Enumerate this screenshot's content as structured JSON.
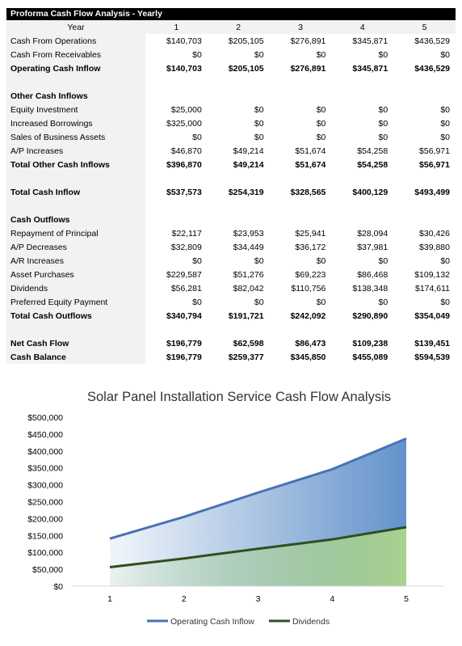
{
  "table": {
    "title": "Proforma Cash Flow Analysis - Yearly",
    "header": {
      "label": "Year",
      "years": [
        "1",
        "2",
        "3",
        "4",
        "5"
      ]
    },
    "rows": [
      {
        "label": "Cash From Operations",
        "values": [
          "$140,703",
          "$205,105",
          "$276,891",
          "$345,871",
          "$436,529"
        ],
        "bold": false
      },
      {
        "label": "Cash From Receivables",
        "values": [
          "$0",
          "$0",
          "$0",
          "$0",
          "$0"
        ],
        "bold": false
      },
      {
        "label": "Operating Cash Inflow",
        "values": [
          "$140,703",
          "$205,105",
          "$276,891",
          "$345,871",
          "$436,529"
        ],
        "bold": true
      },
      {
        "label": "",
        "values": [],
        "bold": false
      },
      {
        "label": "Other Cash Inflows",
        "values": [],
        "bold": true
      },
      {
        "label": "Equity Investment",
        "values": [
          "$25,000",
          "$0",
          "$0",
          "$0",
          "$0"
        ],
        "bold": false
      },
      {
        "label": "Increased Borrowings",
        "values": [
          "$325,000",
          "$0",
          "$0",
          "$0",
          "$0"
        ],
        "bold": false
      },
      {
        "label": "Sales of Business Assets",
        "values": [
          "$0",
          "$0",
          "$0",
          "$0",
          "$0"
        ],
        "bold": false
      },
      {
        "label": "A/P Increases",
        "values": [
          "$46,870",
          "$49,214",
          "$51,674",
          "$54,258",
          "$56,971"
        ],
        "bold": false
      },
      {
        "label": "Total Other Cash Inflows",
        "values": [
          "$396,870",
          "$49,214",
          "$51,674",
          "$54,258",
          "$56,971"
        ],
        "bold": true
      },
      {
        "label": "",
        "values": [],
        "bold": false
      },
      {
        "label": "Total Cash Inflow",
        "values": [
          "$537,573",
          "$254,319",
          "$328,565",
          "$400,129",
          "$493,499"
        ],
        "bold": true
      },
      {
        "label": "",
        "values": [],
        "bold": false
      },
      {
        "label": "Cash Outflows",
        "values": [],
        "bold": true
      },
      {
        "label": "Repayment of Principal",
        "values": [
          "$22,117",
          "$23,953",
          "$25,941",
          "$28,094",
          "$30,426"
        ],
        "bold": false
      },
      {
        "label": "A/P Decreases",
        "values": [
          "$32,809",
          "$34,449",
          "$36,172",
          "$37,981",
          "$39,880"
        ],
        "bold": false
      },
      {
        "label": "A/R Increases",
        "values": [
          "$0",
          "$0",
          "$0",
          "$0",
          "$0"
        ],
        "bold": false
      },
      {
        "label": "Asset Purchases",
        "values": [
          "$229,587",
          "$51,276",
          "$69,223",
          "$86,468",
          "$109,132"
        ],
        "bold": false
      },
      {
        "label": "Dividends",
        "values": [
          "$56,281",
          "$82,042",
          "$110,756",
          "$138,348",
          "$174,611"
        ],
        "bold": false
      },
      {
        "label": "Preferred Equity Payment",
        "values": [
          "$0",
          "$0",
          "$0",
          "$0",
          "$0"
        ],
        "bold": false
      },
      {
        "label": "Total Cash Outflows",
        "values": [
          "$340,794",
          "$191,721",
          "$242,092",
          "$290,890",
          "$354,049"
        ],
        "bold": true
      },
      {
        "label": "",
        "values": [],
        "bold": false
      },
      {
        "label": "Net Cash Flow",
        "values": [
          "$196,779",
          "$62,598",
          "$86,473",
          "$109,238",
          "$139,451"
        ],
        "bold": true
      },
      {
        "label": "Cash Balance",
        "values": [
          "$196,779",
          "$259,377",
          "$345,850",
          "$455,089",
          "$594,539"
        ],
        "bold": true
      }
    ]
  },
  "chart_data": {
    "type": "area",
    "title": "Solar Panel Installation Service Cash Flow Analysis",
    "x": [
      1,
      2,
      3,
      4,
      5
    ],
    "series": [
      {
        "name": "Operating Cash Inflow",
        "values": [
          140703,
          205105,
          276891,
          345871,
          436529
        ],
        "line_color": "#4a72b5",
        "fill_color": "#5b8dc8"
      },
      {
        "name": "Dividends",
        "values": [
          56281,
          82042,
          110756,
          138348,
          174611
        ],
        "line_color": "#2e4f1f",
        "fill_color": "#a9d18e"
      }
    ],
    "ylim": [
      0,
      500000
    ],
    "yticks": [
      0,
      50000,
      100000,
      150000,
      200000,
      250000,
      300000,
      350000,
      400000,
      450000,
      500000
    ],
    "ytick_labels": [
      "$0",
      "$50,000",
      "$100,000",
      "$150,000",
      "$200,000",
      "$250,000",
      "$300,000",
      "$350,000",
      "$400,000",
      "$450,000",
      "$500,000"
    ],
    "xtick_labels": [
      "1",
      "2",
      "3",
      "4",
      "5"
    ],
    "grid": false,
    "legend": "bottom"
  }
}
